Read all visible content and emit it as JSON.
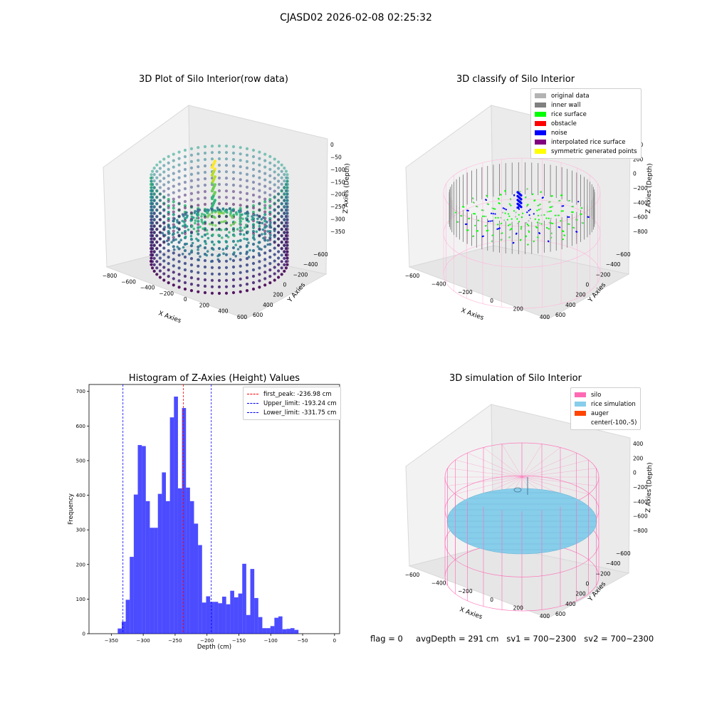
{
  "figure": {
    "title": "CJASD02 2026-02-08 02:25:32"
  },
  "panel_raw": {
    "title": "3D Plot of Silo Interior(row data)",
    "xlabel": "X Axies",
    "ylabel": "Y Axies",
    "zlabel": "Z Axies (Depth)",
    "xticks": [
      "−800",
      "−600",
      "−400",
      "−200",
      "0",
      "200",
      "400",
      "600"
    ],
    "yticks": [
      "−600",
      "−400",
      "−200",
      "0",
      "200",
      "400",
      "600"
    ],
    "zticks": [
      "0",
      "−50",
      "−100",
      "−150",
      "−200",
      "−250",
      "−300",
      "−350"
    ]
  },
  "panel_classify": {
    "title": "3D classify of Silo Interior",
    "xlabel": "X Axies",
    "ylabel": "Y Axies",
    "zlabel": "Z Axies (Depth)",
    "xticks": [
      "−600",
      "−400",
      "−200",
      "0",
      "200",
      "400"
    ],
    "yticks": [
      "−600",
      "−400",
      "−200",
      "0",
      "200",
      "400",
      "600"
    ],
    "zticks": [
      "400",
      "200",
      "0",
      "−200",
      "−400",
      "−600",
      "−800"
    ],
    "legend": [
      {
        "label": "original data",
        "color": "#b3b3b3"
      },
      {
        "label": "inner wall",
        "color": "#808080"
      },
      {
        "label": "rice surface",
        "color": "#00ff00"
      },
      {
        "label": "obstacle",
        "color": "#ff0000"
      },
      {
        "label": "noise",
        "color": "#0000ff"
      },
      {
        "label": "interpolated rice surface",
        "color": "#800080"
      },
      {
        "label": "symmetric generated points",
        "color": "#ffff00"
      }
    ]
  },
  "panel_sim": {
    "title": "3D simulation of Silo Interior",
    "xlabel": "X Axies",
    "ylabel": "Y Axies",
    "zlabel": "Z Axies (Depth)",
    "xticks": [
      "−600",
      "−400",
      "−200",
      "0",
      "200",
      "400"
    ],
    "yticks": [
      "−600",
      "−400",
      "−200",
      "0",
      "200",
      "400",
      "600"
    ],
    "zticks": [
      "400",
      "200",
      "0",
      "−200",
      "−400",
      "−600",
      "−800"
    ],
    "legend": [
      {
        "label": "silo",
        "color": "#ff69b4"
      },
      {
        "label": "rice simulation",
        "color": "#87ceeb"
      },
      {
        "label": "auger",
        "color": "#ff4500"
      },
      {
        "label": "center(-100,-5)",
        "color": "#ffffff"
      }
    ]
  },
  "status": {
    "flag": "flag = 0",
    "avg_depth": "avgDepth = 291 cm",
    "sv1": "sv1 = 700~2300",
    "sv2": "sv2 = 700~2300"
  },
  "chart_data": {
    "type": "bar",
    "title": "Histogram of Z-Axies (Height) Values",
    "xlabel": "Depth (cm)",
    "ylabel": "Frequency",
    "xlim": [
      -385,
      8
    ],
    "ylim": [
      0,
      720
    ],
    "xticks": [
      -350,
      -300,
      -250,
      -200,
      -150,
      -100,
      -50,
      0
    ],
    "yticks": [
      0,
      100,
      200,
      300,
      400,
      500,
      600,
      700
    ],
    "bar_color": "#0000ff",
    "bin_start": -340,
    "bin_width": 6.3,
    "values": [
      15,
      35,
      98,
      222,
      402,
      545,
      542,
      383,
      306,
      306,
      404,
      466,
      383,
      625,
      685,
      420,
      652,
      422,
      383,
      318,
      256,
      90,
      108,
      92,
      92,
      88,
      107,
      85,
      124,
      105,
      116,
      202,
      54,
      187,
      103,
      48,
      16,
      16,
      22,
      46,
      50,
      13,
      14,
      16,
      11
    ],
    "lines": [
      {
        "label": "first_peak: -236.98 cm",
        "value": -236.98,
        "color": "#ff0000"
      },
      {
        "label": "Upper_limit: -193.24 cm",
        "value": -193.24,
        "color": "#0000ff"
      },
      {
        "label": "Lower_limit: -331.75 cm",
        "value": -331.75,
        "color": "#0000ff"
      }
    ],
    "legend_position": "top-right"
  }
}
